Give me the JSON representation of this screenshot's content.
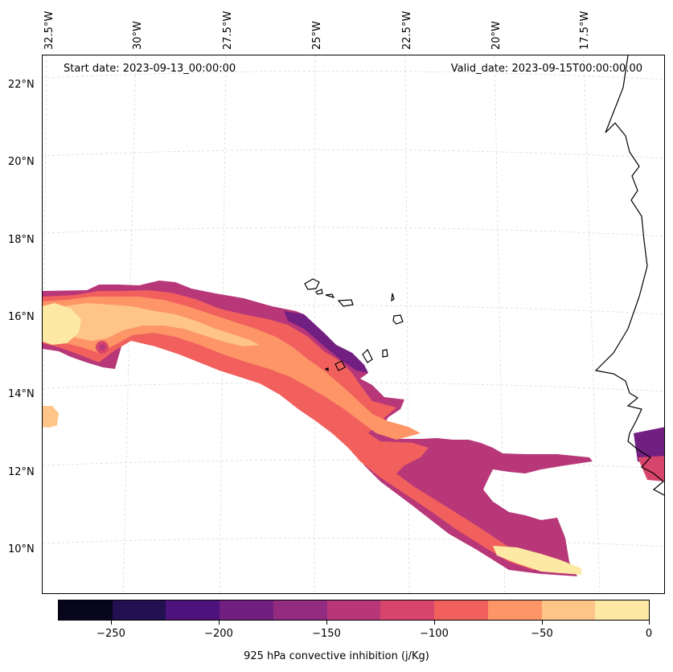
{
  "header": {
    "start_date": "Start date: 2023-09-13_00:00:00",
    "valid_date": "Valid_date: 2023-09-15T00:00:00.00"
  },
  "axes": {
    "lon_labels": [
      "32.5°W",
      "30°W",
      "27.5°W",
      "25°W",
      "22.5°W",
      "20°W",
      "17.5°W"
    ],
    "lat_labels": [
      "22°N",
      "20°N",
      "18°N",
      "16°N",
      "14°N",
      "12°N",
      "10°N"
    ]
  },
  "colorbar": {
    "title": "925 hPa convective inhibition (j/Kg)",
    "tick_labels": [
      "−250",
      "−200",
      "−150",
      "−100",
      "−50",
      "0"
    ],
    "colors": [
      "#07061c",
      "#221150",
      "#4d127b",
      "#711f81",
      "#932b80",
      "#b73779",
      "#d8456c",
      "#f1605d",
      "#fd9567",
      "#fec488",
      "#fde9a4"
    ]
  },
  "map_features": {
    "field": "925 hPa convective inhibition",
    "colormap": "magma",
    "coastlines": true,
    "gridlines": "dashed light gray"
  }
}
